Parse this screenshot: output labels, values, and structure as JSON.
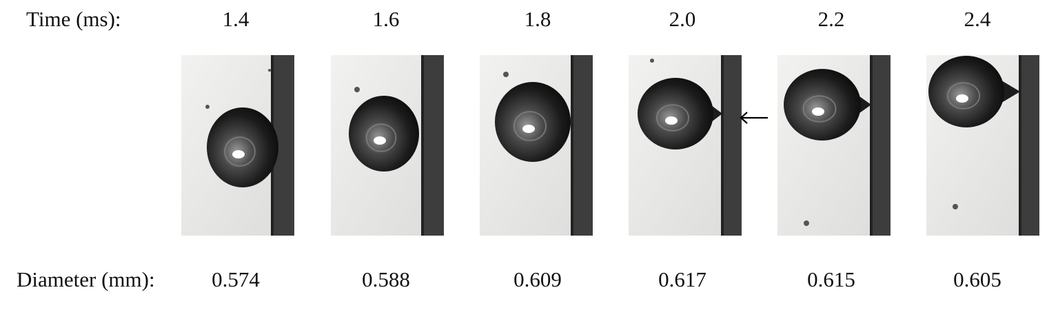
{
  "labels": {
    "time": "Time (ms):",
    "diameter": "Diameter (mm):"
  },
  "frames": [
    {
      "time": "1.4",
      "diameter": "0.574"
    },
    {
      "time": "1.6",
      "diameter": "0.588"
    },
    {
      "time": "1.8",
      "diameter": "0.609"
    },
    {
      "time": "2.0",
      "diameter": "0.617"
    },
    {
      "time": "2.2",
      "diameter": "0.615"
    },
    {
      "time": "2.4",
      "diameter": "0.605"
    }
  ],
  "colors": {
    "background": "#ffffff",
    "frame_bg": "#e9e9e7",
    "wall": "#3d3d3d",
    "bubble": "#1c1c1c",
    "arrow": "#000000"
  },
  "icons": [
    "arrow-left-icon"
  ]
}
